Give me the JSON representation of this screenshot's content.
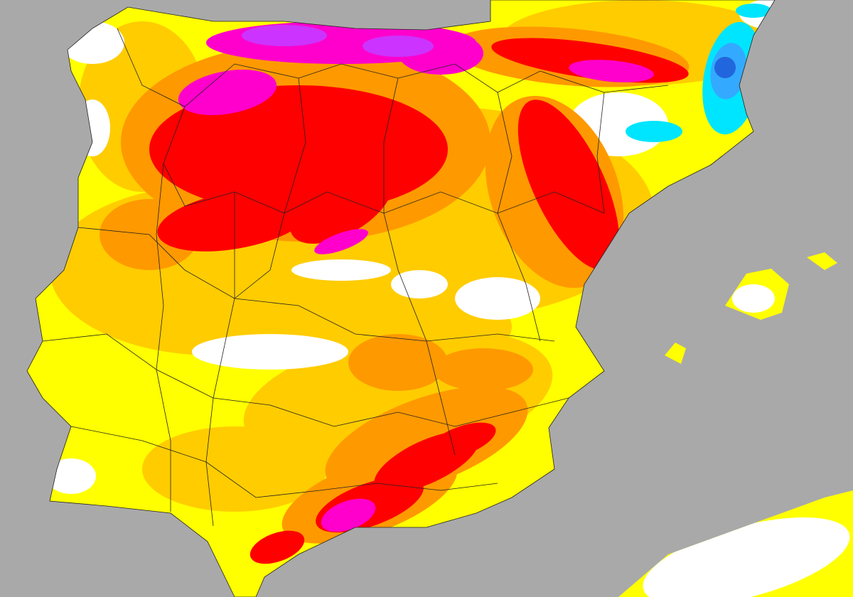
{
  "map": {
    "colors": {
      "sea": "#a9a9a9",
      "white": "#ffffff",
      "yellow": "#ffff00",
      "light_orange": "#ffcc00",
      "orange": "#ff9900",
      "red": "#ff0000",
      "magenta": "#ff00cc",
      "violet": "#cc33ff",
      "cyan": "#00e5ff",
      "light_blue": "#33aaff",
      "blue": "#2266dd",
      "border": "#222222"
    }
  }
}
